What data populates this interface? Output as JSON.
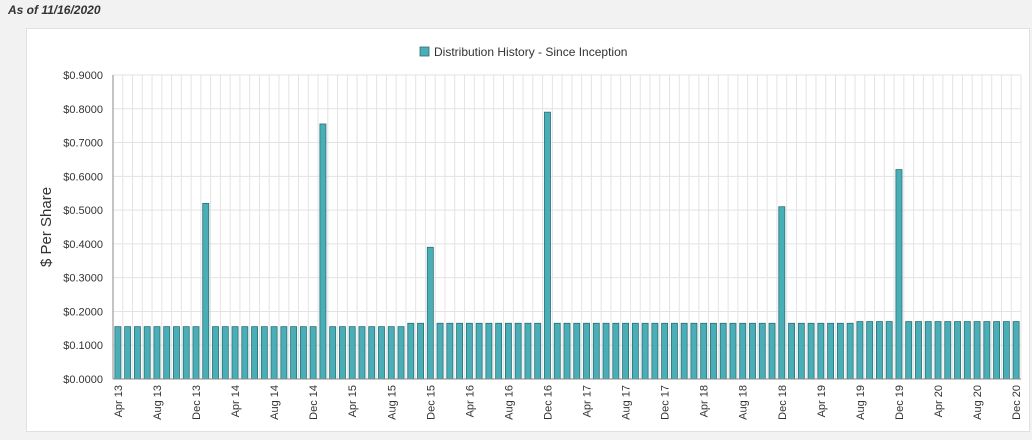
{
  "as_of": "As of 11/16/2020",
  "colors": {
    "bar_fill": "#4aaeb7",
    "bar_stroke": "#2a6f78",
    "grid": "#e3e3e3",
    "axis": "#888888"
  },
  "chart_data": {
    "type": "bar",
    "title": "",
    "legend": {
      "label": "Distribution History - Since Inception",
      "position": "top-center"
    },
    "ylabel": "$ Per Share",
    "xlabel": "",
    "ylim": [
      0,
      0.9
    ],
    "yticks": [
      "$0.0000",
      "$0.1000",
      "$0.2000",
      "$0.3000",
      "$0.4000",
      "$0.5000",
      "$0.6000",
      "$0.7000",
      "$0.8000",
      "$0.9000"
    ],
    "xtick_labels": [
      "Apr 13",
      "Aug 13",
      "Dec 13",
      "Apr 14",
      "Aug 14",
      "Dec 14",
      "Apr 15",
      "Aug 15",
      "Dec 15",
      "Apr 16",
      "Aug 16",
      "Dec 16",
      "Apr 17",
      "Aug 17",
      "Dec 17",
      "Apr 18",
      "Aug 18",
      "Dec 18",
      "Apr 19",
      "Aug 19",
      "Dec 19",
      "Apr 20",
      "Aug 20",
      "Dec 20"
    ],
    "grid": true,
    "series": [
      {
        "start_month": "Apr 13",
        "values": [
          0.155,
          0.155,
          0.155,
          0.155,
          0.155,
          0.155,
          0.155,
          0.155,
          0.155,
          0.52,
          0.155,
          0.155,
          0.155,
          0.155,
          0.155,
          0.155,
          0.155,
          0.155,
          0.155,
          0.155,
          0.155,
          0.755,
          0.155,
          0.155,
          0.155,
          0.155,
          0.155,
          0.155,
          0.155,
          0.155,
          0.165,
          0.165,
          0.39,
          0.165,
          0.165,
          0.165,
          0.165,
          0.165,
          0.165,
          0.165,
          0.165,
          0.165,
          0.165,
          0.165,
          0.79,
          0.165,
          0.165,
          0.165,
          0.165,
          0.165,
          0.165,
          0.165,
          0.165,
          0.165,
          0.165,
          0.165,
          0.165,
          0.165,
          0.165,
          0.165,
          0.165,
          0.165,
          0.165,
          0.165,
          0.165,
          0.165,
          0.165,
          0.165,
          0.51,
          0.165,
          0.165,
          0.165,
          0.165,
          0.165,
          0.165,
          0.165,
          0.17,
          0.17,
          0.17,
          0.17,
          0.62,
          0.17,
          0.17,
          0.17,
          0.17,
          0.17,
          0.17,
          0.17,
          0.17,
          0.17,
          0.17,
          0.17,
          0.17
        ]
      }
    ]
  }
}
